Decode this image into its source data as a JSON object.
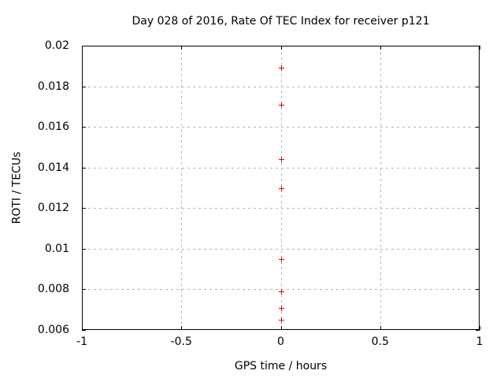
{
  "window": {
    "background": "#ffffff"
  },
  "chart_data": {
    "type": "scatter",
    "title": "Day 028 of 2016, Rate Of TEC Index for receiver p121",
    "xlabel": "GPS time / hours",
    "ylabel": "ROTI / TECUs",
    "xlim": [
      -1,
      1
    ],
    "ylim": [
      0.006,
      0.02
    ],
    "xticks": [
      -1,
      -0.5,
      0,
      0.5,
      1
    ],
    "xtick_labels": [
      "-1",
      "-0.5",
      "0",
      "0.5",
      "1"
    ],
    "yticks": [
      0.006,
      0.008,
      0.01,
      0.012,
      0.014,
      0.016,
      0.018,
      0.02
    ],
    "ytick_labels": [
      "0.006",
      "0.008",
      "0.01",
      "0.012",
      "0.014",
      "0.016",
      "0.018",
      "0.02"
    ],
    "grid": true,
    "legend": "none",
    "marker": "plus",
    "marker_color": "#e60000",
    "grid_color": "#b5b5b5",
    "axis_color": "#000000",
    "text_color": "#000000",
    "series": [
      {
        "name": "ROTI",
        "points": [
          [
            0,
            0.0189
          ],
          [
            0,
            0.0171
          ],
          [
            0,
            0.0144
          ],
          [
            0,
            0.013
          ],
          [
            0,
            0.0095
          ],
          [
            0,
            0.0079
          ],
          [
            0,
            0.0071
          ],
          [
            0,
            0.0065
          ]
        ]
      }
    ]
  }
}
